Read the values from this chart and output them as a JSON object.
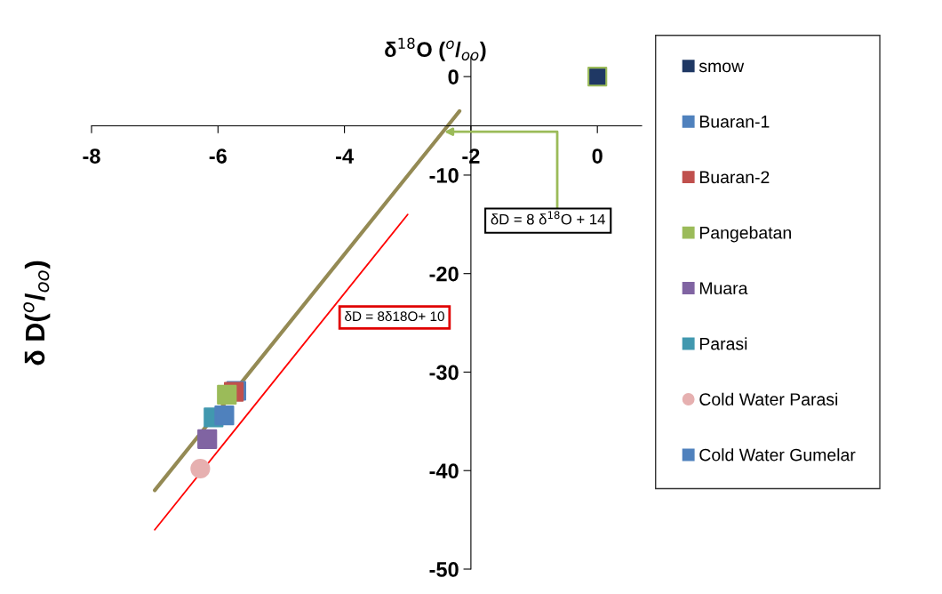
{
  "chart_data": {
    "type": "scatter",
    "xlabel": "δ$^{18}$O ($^{o}$/$_{oo}$)",
    "ylabel": "δ D($^{o}$/$_{oo}$)",
    "xlim": [
      -8,
      0.7
    ],
    "ylim": [
      -50,
      2
    ],
    "xticks": [
      -8,
      -6,
      -4,
      -2,
      0
    ],
    "yticks": [
      -50,
      -40,
      -30,
      -20,
      -10,
      0
    ],
    "grid": false,
    "legend": "right",
    "series": [
      {
        "name": "smow",
        "color": "#1f3864",
        "marker": "square",
        "x": [
          0
        ],
        "values": [
          0
        ]
      },
      {
        "name": "Buaran-1",
        "color": "#4f81bd",
        "marker": "square",
        "x": [
          -5.71
        ],
        "values": [
          -31.9
        ]
      },
      {
        "name": "Buaran-2",
        "color": "#c0504d",
        "marker": "square",
        "x": [
          -5.75
        ],
        "values": [
          -32.0
        ]
      },
      {
        "name": "Pangebatan",
        "color": "#9bbb59",
        "marker": "square",
        "x": [
          -5.86
        ],
        "values": [
          -32.3
        ]
      },
      {
        "name": "Muara",
        "color": "#8064a2",
        "marker": "square",
        "x": [
          -6.17
        ],
        "values": [
          -36.8
        ]
      },
      {
        "name": "Parasi",
        "color": "#4198af",
        "marker": "square",
        "x": [
          -6.07
        ],
        "values": [
          -34.6
        ]
      },
      {
        "name": "Cold Water Parasi",
        "color": "#e6b0b0",
        "marker": "circle",
        "x": [
          -6.28
        ],
        "values": [
          -39.8
        ]
      },
      {
        "name": "Cold Water Gumelar",
        "color": "#4f81bd",
        "marker": "square",
        "x": [
          -5.9
        ],
        "values": [
          -34.4
        ]
      },
      {
        "type": "line",
        "color": "#948a54",
        "x": [
          -7,
          -2.18
        ],
        "values": [
          -42,
          -3.5
        ]
      },
      {
        "type": "line",
        "color": "#ff0000",
        "x": [
          -7,
          -3
        ],
        "values": [
          -46,
          -14
        ]
      }
    ],
    "annotations": [
      {
        "text": "δD = 8 δ$^{18}$O + 14",
        "x": -2.42,
        "y": -5.6
      },
      "δD = 8δ18O+ 10"
    ]
  }
}
